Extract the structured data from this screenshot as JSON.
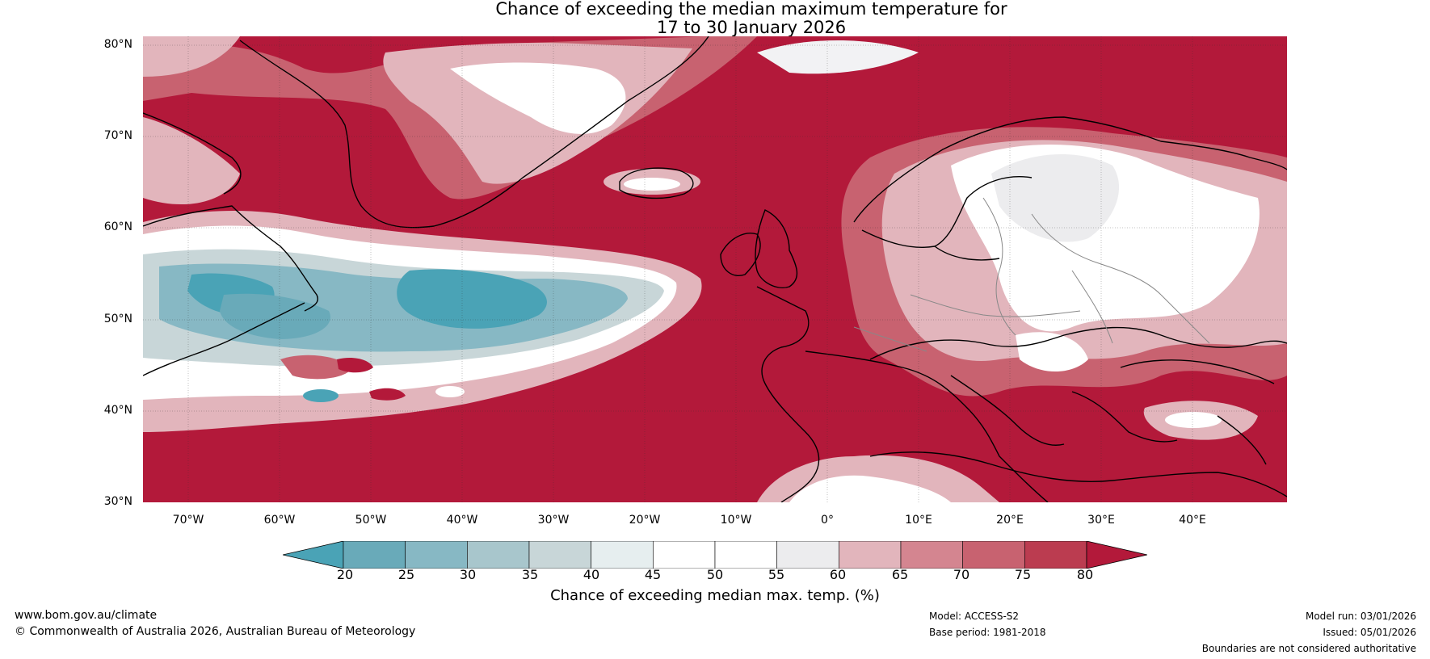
{
  "title": {
    "line1": "Chance of exceeding the median maximum temperature for",
    "line2": "17 to 30 January 2026"
  },
  "axes": {
    "lat_labels": [
      "80°N",
      "70°N",
      "60°N",
      "50°N",
      "40°N",
      "30°N"
    ],
    "lon_labels": [
      "70°W",
      "60°W",
      "50°W",
      "40°W",
      "30°W",
      "20°W",
      "10°W",
      "0°",
      "10°E",
      "20°E",
      "30°E",
      "40°E"
    ]
  },
  "colorbar": {
    "ticks": [
      "20",
      "25",
      "30",
      "35",
      "40",
      "45",
      "50",
      "55",
      "60",
      "65",
      "70",
      "75",
      "80"
    ],
    "label": "Chance of exceeding median max. temp. (%)",
    "colors": [
      "#4aa3b6",
      "#69aab9",
      "#87b8c4",
      "#a8c6cc",
      "#c8d6d8",
      "#e6eeef",
      "#ffffff",
      "#ffffff",
      "#ececee",
      "#e2b5bc",
      "#d48590",
      "#c86270",
      "#bb3c50",
      "#b3193a"
    ]
  },
  "footer": {
    "website": "www.bom.gov.au/climate",
    "copyright": "© Commonwealth of Australia 2026, Australian Bureau of Meteorology",
    "model": "Model: ACCESS-S2",
    "base_period": "Base period: 1981-2018",
    "model_run": "Model run: 03/01/2026",
    "issued": "Issued: 05/01/2026",
    "disclaimer": "Boundaries are not considered authoritative"
  },
  "map_colors": {
    "high": "#b3193a",
    "mid_high": "#c86270",
    "light_red": "#e2b5bc",
    "neutral": "#ffffff",
    "grey": "#ececee",
    "light_blue": "#a8c6cc",
    "blue": "#4aa3b6"
  }
}
